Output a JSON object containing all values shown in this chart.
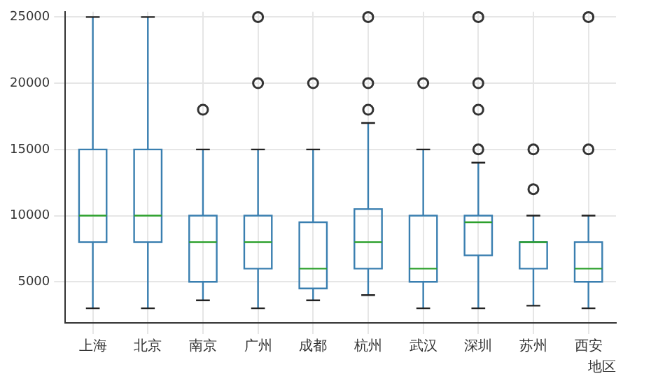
{
  "chart_data": {
    "type": "box",
    "xlabel": "地区",
    "categories": [
      "上海",
      "北京",
      "南京",
      "广州",
      "成都",
      "杭州",
      "武汉",
      "深圳",
      "苏州",
      "西安"
    ],
    "color": "#3a7fb0",
    "boxes": [
      {
        "low": 3000,
        "q1": 8000,
        "median": 10000,
        "q3": 15000,
        "high": 25000
      },
      {
        "low": 3000,
        "q1": 8000,
        "median": 10000,
        "q3": 15000,
        "high": 25000
      },
      {
        "low": 3600,
        "q1": 5000,
        "median": 8000,
        "q3": 10000,
        "high": 15000,
        "outliers": [
          18000
        ]
      },
      {
        "low": 3000,
        "q1": 6000,
        "median": 8000,
        "q3": 10000,
        "high": 15000,
        "outliers": [
          20000,
          25000
        ]
      },
      {
        "low": 3600,
        "q1": 4500,
        "median": 6000,
        "q3": 9500,
        "high": 15000,
        "outliers": [
          20000
        ]
      },
      {
        "low": 4000,
        "q1": 6000,
        "median": 8000,
        "q3": 10500,
        "high": 17000,
        "outliers": [
          18000,
          20000,
          25000
        ]
      },
      {
        "low": 3000,
        "q1": 5000,
        "median": 6000,
        "q3": 10000,
        "high": 15000,
        "outliers": [
          20000
        ]
      },
      {
        "low": 3000,
        "q1": 7000,
        "median": 9500,
        "q3": 10000,
        "high": 14000,
        "outliers": [
          15000,
          18000,
          20000,
          25000
        ]
      },
      {
        "low": 3200,
        "q1": 6000,
        "median": 8000,
        "q3": 8000,
        "high": 10000,
        "outliers": [
          12000,
          15000
        ]
      },
      {
        "low": 3000,
        "q1": 5000,
        "median": 6000,
        "q3": 8000,
        "high": 10000,
        "outliers": [
          15000,
          25000
        ]
      }
    ],
    "ylim": [
      1900,
      25400
    ],
    "yticks": [
      5000,
      10000,
      15000,
      20000,
      25000
    ],
    "grid": true
  }
}
